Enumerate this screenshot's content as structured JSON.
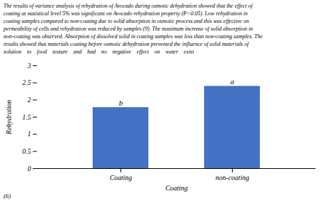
{
  "chart_data": {
    "type": "bar",
    "categories": [
      "Coating",
      "non-coating"
    ],
    "values": [
      1.78,
      2.4
    ],
    "color": "#4472C4",
    "labels": [
      "b",
      "a"
    ],
    "xlabel": "Coating",
    "ylabel": "Rehydration",
    "ylim": [
      0,
      3
    ],
    "yticks": [
      0,
      0.5,
      1,
      1.5,
      2,
      2.5,
      3
    ],
    "grid": false,
    "annotations": [
      "The results of variance analysis of rehydration of Avocado during osmotic dehydration showed that the effect of",
      "coating at statistical level 5% was significant on Avocado rehydration property (P<0.05). Low rehydration in",
      "coating samples compared to non-coating due to solid absorption in osmotic process and this was effective on",
      "permeability of cells and rehydration was reduced by samples (9). The maximum increase of solid absorption in",
      "non-coating was observed. Absorption of dissolved solid in coating samples was less than non-coating samples. The",
      "results showed that materials coating before osmotic dehydration prevented the influence of solid materials of",
      "solution    to    food    texture    and    had    no    negative    effect    on    water    exist"
    ],
    "caption": "(6)"
  }
}
